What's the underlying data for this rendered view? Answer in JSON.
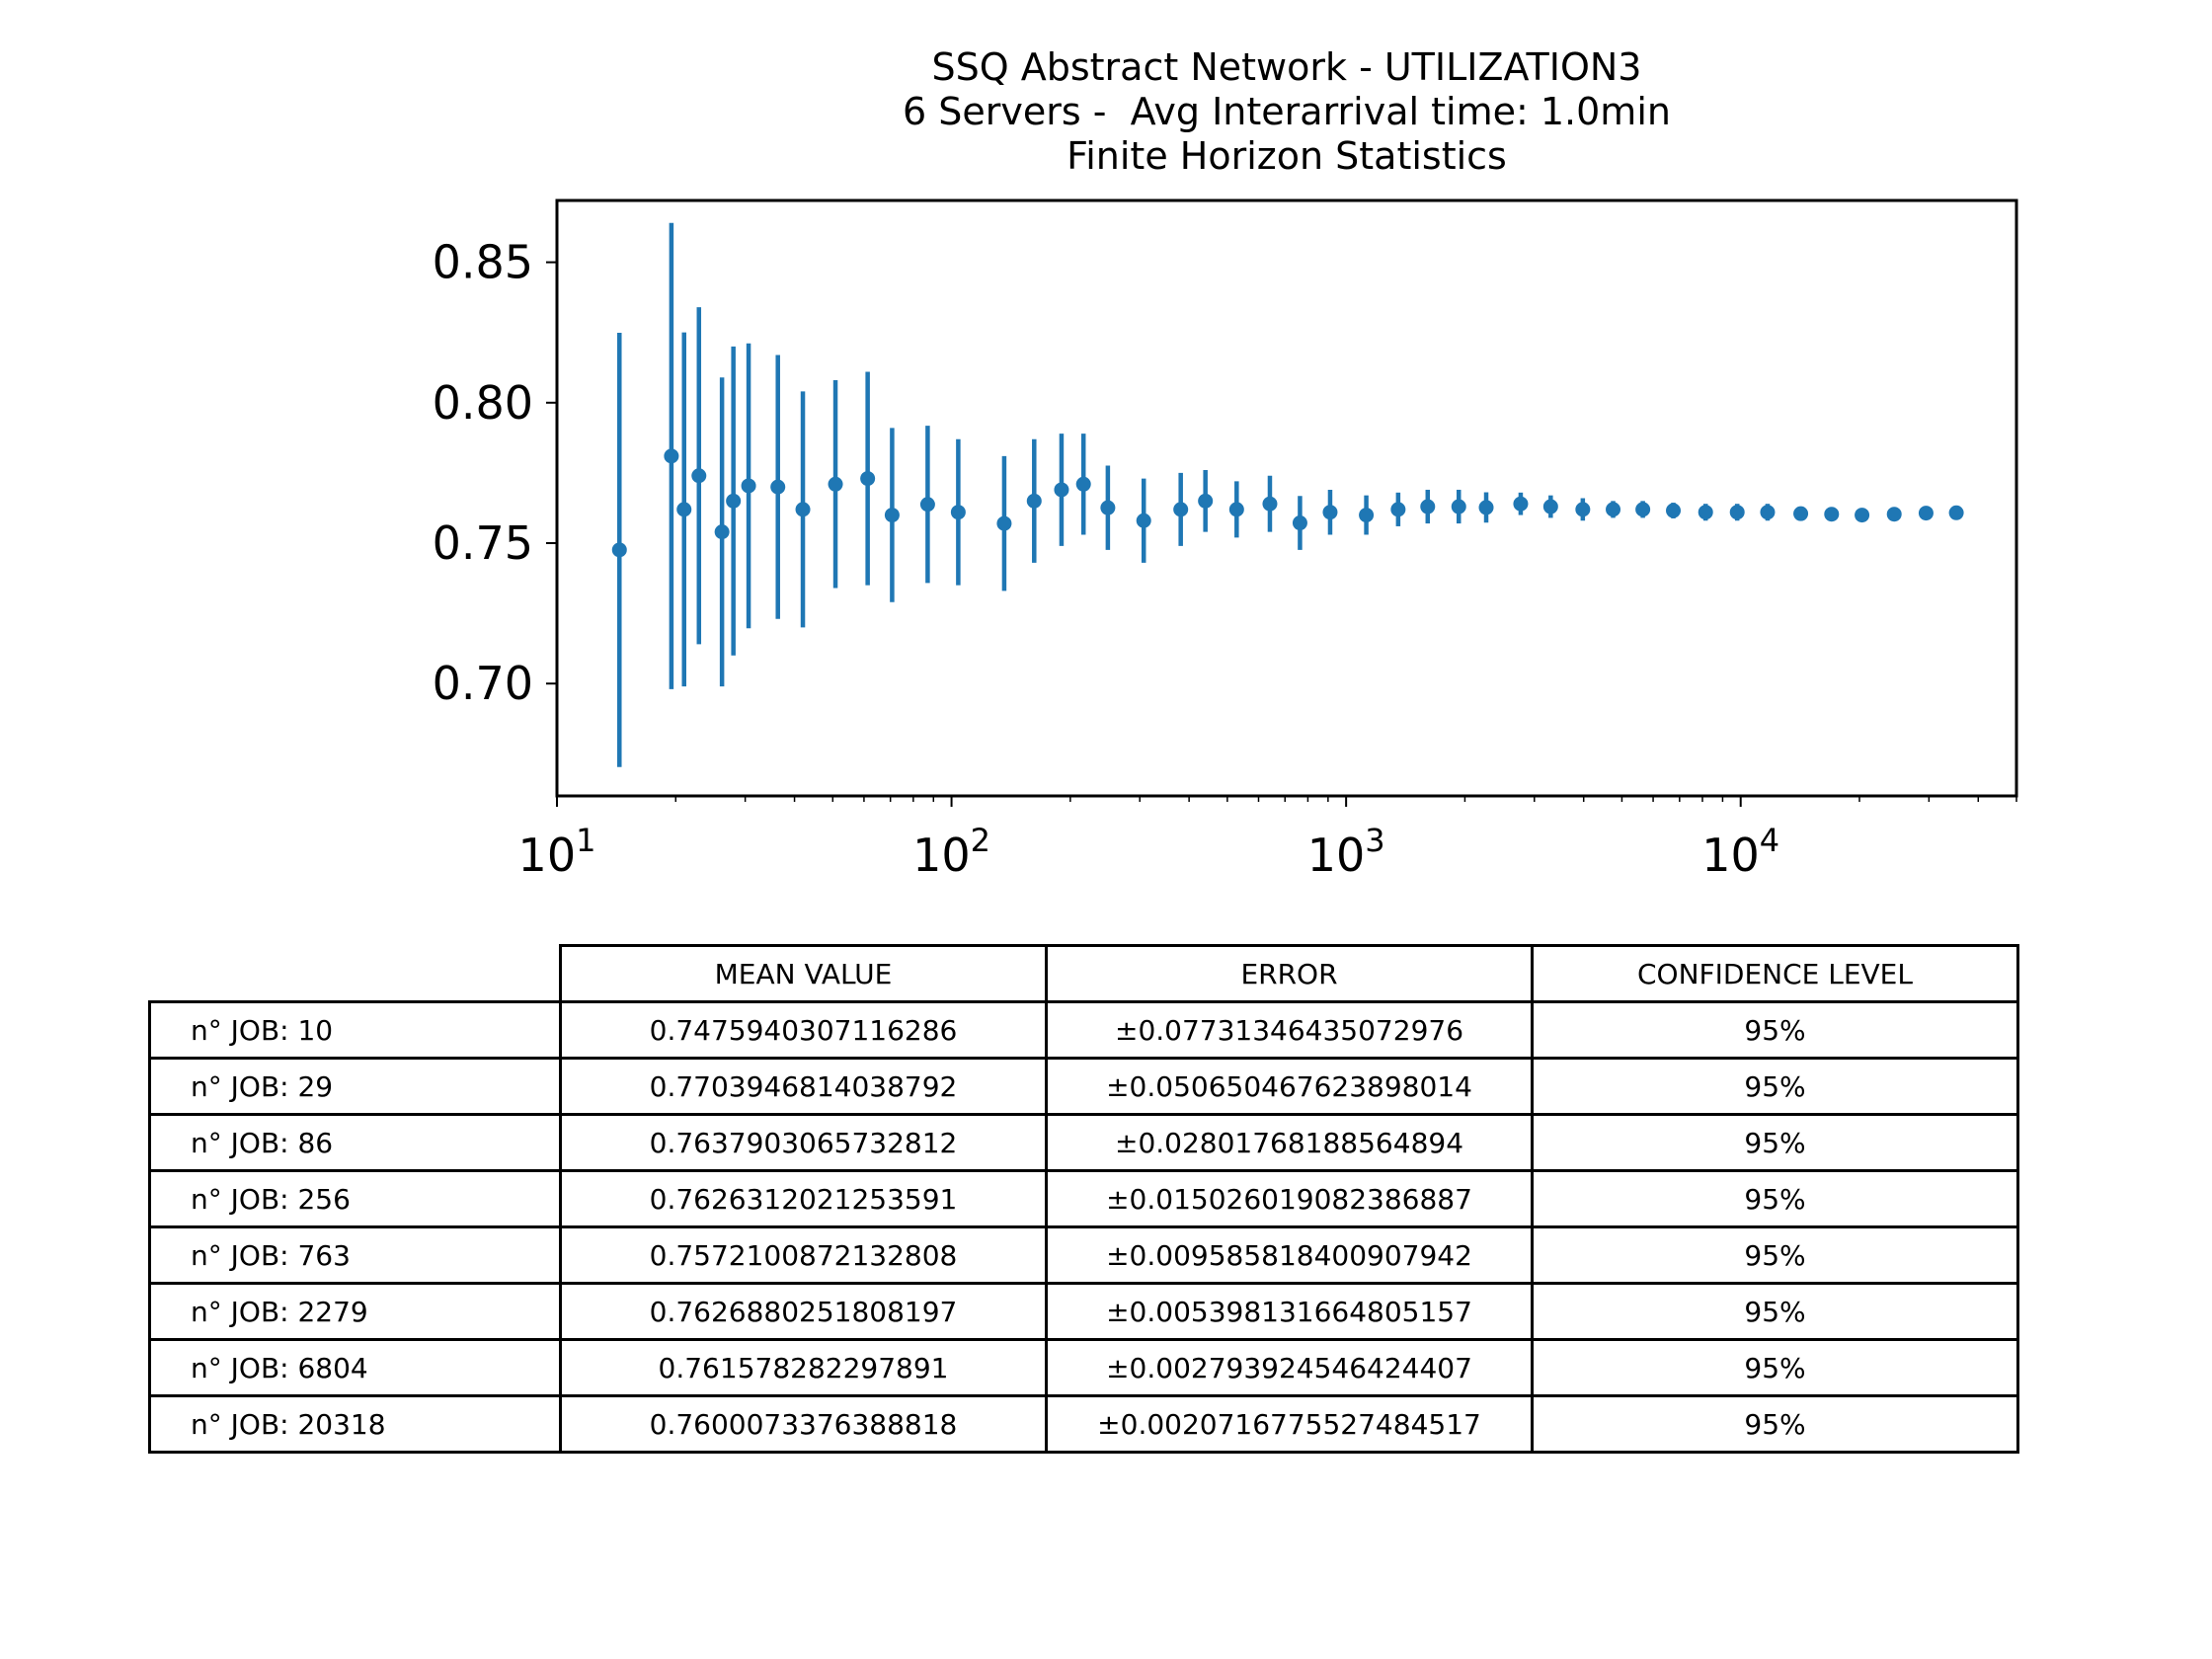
{
  "chart_data": {
    "type": "scatter",
    "title_lines": [
      "SSQ Abstract Network - UTILIZATION3",
      "6 Servers -  Avg Interarrival time: 1.0min",
      "Finite Horizon Statistics"
    ],
    "xscale": "log",
    "xlim": [
      10,
      50000
    ],
    "ylim": [
      0.66,
      0.872
    ],
    "x_ticks": [
      10,
      100,
      1000,
      10000
    ],
    "x_tick_labels": [
      {
        "base": "10",
        "exp": "1"
      },
      {
        "base": "10",
        "exp": "2"
      },
      {
        "base": "10",
        "exp": "3"
      },
      {
        "base": "10",
        "exp": "4"
      }
    ],
    "y_ticks": [
      0.7,
      0.75,
      0.8,
      0.85
    ],
    "y_tick_labels": [
      "0.70",
      "0.75",
      "0.80",
      "0.85"
    ],
    "grid": false,
    "color": "#1f77b4",
    "series": [
      {
        "points": [
          {
            "x": 14.4,
            "y": 0.7476,
            "err": 0.0773
          },
          {
            "x": 19.5,
            "y": 0.781,
            "err": 0.083
          },
          {
            "x": 21.0,
            "y": 0.762,
            "err": 0.063
          },
          {
            "x": 22.9,
            "y": 0.774,
            "err": 0.06
          },
          {
            "x": 26.2,
            "y": 0.754,
            "err": 0.055
          },
          {
            "x": 28.0,
            "y": 0.765,
            "err": 0.055
          },
          {
            "x": 30.6,
            "y": 0.7704,
            "err": 0.0507
          },
          {
            "x": 36.3,
            "y": 0.77,
            "err": 0.047
          },
          {
            "x": 42.0,
            "y": 0.762,
            "err": 0.042
          },
          {
            "x": 50.8,
            "y": 0.771,
            "err": 0.037
          },
          {
            "x": 61.3,
            "y": 0.773,
            "err": 0.038
          },
          {
            "x": 70.7,
            "y": 0.76,
            "err": 0.031
          },
          {
            "x": 87.0,
            "y": 0.7638,
            "err": 0.028
          },
          {
            "x": 104.0,
            "y": 0.761,
            "err": 0.026
          },
          {
            "x": 136.0,
            "y": 0.757,
            "err": 0.024
          },
          {
            "x": 162.0,
            "y": 0.765,
            "err": 0.022
          },
          {
            "x": 190.0,
            "y": 0.769,
            "err": 0.02
          },
          {
            "x": 216.0,
            "y": 0.771,
            "err": 0.018
          },
          {
            "x": 249.0,
            "y": 0.7626,
            "err": 0.015
          },
          {
            "x": 307.0,
            "y": 0.758,
            "err": 0.015
          },
          {
            "x": 381.0,
            "y": 0.762,
            "err": 0.013
          },
          {
            "x": 440.0,
            "y": 0.765,
            "err": 0.011
          },
          {
            "x": 528.0,
            "y": 0.762,
            "err": 0.01
          },
          {
            "x": 641.0,
            "y": 0.764,
            "err": 0.01
          },
          {
            "x": 764.0,
            "y": 0.7572,
            "err": 0.0096
          },
          {
            "x": 911.0,
            "y": 0.761,
            "err": 0.008
          },
          {
            "x": 1125.0,
            "y": 0.76,
            "err": 0.007
          },
          {
            "x": 1355.0,
            "y": 0.762,
            "err": 0.006
          },
          {
            "x": 1610.0,
            "y": 0.763,
            "err": 0.006
          },
          {
            "x": 1930.0,
            "y": 0.763,
            "err": 0.006
          },
          {
            "x": 2265.0,
            "y": 0.7627,
            "err": 0.0054
          },
          {
            "x": 2770.0,
            "y": 0.764,
            "err": 0.004
          },
          {
            "x": 3300.0,
            "y": 0.763,
            "err": 0.004
          },
          {
            "x": 3980.0,
            "y": 0.762,
            "err": 0.004
          },
          {
            "x": 4750.0,
            "y": 0.762,
            "err": 0.003
          },
          {
            "x": 5650.0,
            "y": 0.762,
            "err": 0.003
          },
          {
            "x": 6750.0,
            "y": 0.7616,
            "err": 0.0028
          },
          {
            "x": 8150.0,
            "y": 0.761,
            "err": 0.003
          },
          {
            "x": 9800.0,
            "y": 0.761,
            "err": 0.003
          },
          {
            "x": 11700.0,
            "y": 0.761,
            "err": 0.003
          },
          {
            "x": 14200.0,
            "y": 0.7605,
            "err": 0.0025
          },
          {
            "x": 17000.0,
            "y": 0.7603,
            "err": 0.0023
          },
          {
            "x": 20300.0,
            "y": 0.76,
            "err": 0.0021
          },
          {
            "x": 24500.0,
            "y": 0.7603,
            "err": 0.002
          },
          {
            "x": 29500.0,
            "y": 0.7607,
            "err": 0.002
          },
          {
            "x": 35200.0,
            "y": 0.7608,
            "err": 0.002
          }
        ]
      }
    ]
  },
  "table": {
    "headers": [
      "MEAN VALUE",
      "ERROR",
      "CONFIDENCE LEVEL"
    ],
    "rows": [
      {
        "label": "n° JOB: 10",
        "mean": "0.7475940307116286",
        "error": "±0.07731346435072976",
        "confidence": "95%"
      },
      {
        "label": "n° JOB: 29",
        "mean": "0.7703946814038792",
        "error": "±0.050650467623898014",
        "confidence": "95%"
      },
      {
        "label": "n° JOB: 86",
        "mean": "0.7637903065732812",
        "error": "±0.02801768188564894",
        "confidence": "95%"
      },
      {
        "label": "n° JOB: 256",
        "mean": "0.7626312021253591",
        "error": "±0.015026019082386887",
        "confidence": "95%"
      },
      {
        "label": "n° JOB: 763",
        "mean": "0.7572100872132808",
        "error": "±0.009585818400907942",
        "confidence": "95%"
      },
      {
        "label": "n° JOB: 2279",
        "mean": "0.7626880251808197",
        "error": "±0.005398131664805157",
        "confidence": "95%"
      },
      {
        "label": "n° JOB: 6804",
        "mean": "0.761578282297891",
        "error": "±0.002793924546424407",
        "confidence": "95%"
      },
      {
        "label": "n° JOB: 20318",
        "mean": "0.7600073376388818",
        "error": "±0.0020716775527484517",
        "confidence": "95%"
      }
    ]
  }
}
